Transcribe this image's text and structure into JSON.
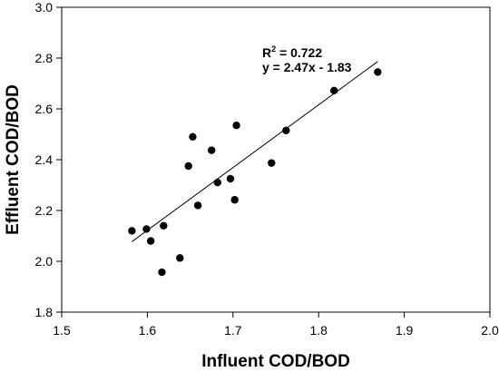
{
  "chart_data": {
    "type": "scatter",
    "title": "",
    "xlabel": "Influent COD/BOD",
    "ylabel": "Effluent COD/BOD",
    "xlim": [
      1.5,
      2.0
    ],
    "ylim": [
      1.8,
      3.0
    ],
    "xticks": [
      "1.5",
      "1.6",
      "1.7",
      "1.8",
      "1.9",
      "2.0"
    ],
    "yticks": [
      "1.8",
      "2.0",
      "2.2",
      "2.4",
      "2.6",
      "2.8",
      "3.0"
    ],
    "grid": false,
    "marker_color": "#000000",
    "points": [
      {
        "x": 1.582,
        "y": 2.12
      },
      {
        "x": 1.599,
        "y": 2.127
      },
      {
        "x": 1.604,
        "y": 2.08
      },
      {
        "x": 1.617,
        "y": 1.957
      },
      {
        "x": 1.619,
        "y": 2.14
      },
      {
        "x": 1.638,
        "y": 2.013
      },
      {
        "x": 1.648,
        "y": 2.375
      },
      {
        "x": 1.653,
        "y": 2.49
      },
      {
        "x": 1.659,
        "y": 2.22
      },
      {
        "x": 1.675,
        "y": 2.437
      },
      {
        "x": 1.682,
        "y": 2.31
      },
      {
        "x": 1.697,
        "y": 2.325
      },
      {
        "x": 1.702,
        "y": 2.242
      },
      {
        "x": 1.704,
        "y": 2.535
      },
      {
        "x": 1.745,
        "y": 2.387
      },
      {
        "x": 1.762,
        "y": 2.515
      },
      {
        "x": 1.818,
        "y": 2.672
      },
      {
        "x": 1.869,
        "y": 2.745
      }
    ],
    "fit_line": {
      "slope": 2.47,
      "intercept": -1.83,
      "x_range": [
        1.582,
        1.869
      ]
    },
    "annotations": {
      "r_squared": {
        "base": "R",
        "sup": "2",
        "rest": " = 0.722"
      },
      "equation": "y = 2.47x - 1.83"
    }
  }
}
